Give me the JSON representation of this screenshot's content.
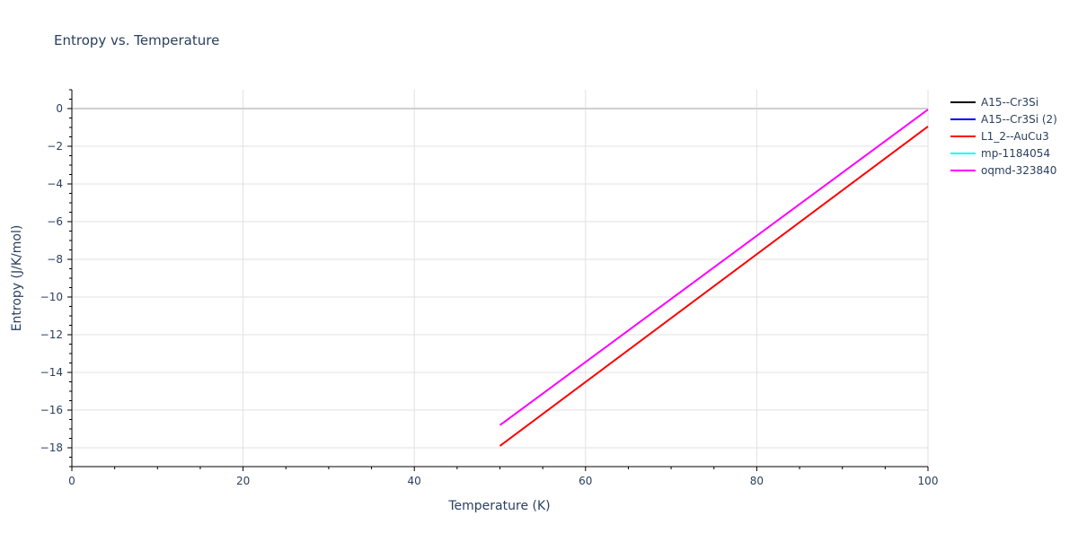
{
  "chart_data": {
    "type": "line",
    "title": "Entropy vs. Temperature",
    "xlabel": "Temperature (K)",
    "ylabel": "Entropy (J/K/mol)",
    "xlim": [
      0,
      100
    ],
    "ylim": [
      -19,
      1
    ],
    "x_ticks": [
      0,
      20,
      40,
      60,
      80,
      100
    ],
    "y_ticks": [
      0,
      -2,
      -4,
      -6,
      -8,
      -10,
      -12,
      -14,
      -16,
      -18
    ],
    "grid": true,
    "legend_position": "right",
    "series": [
      {
        "name": "A15--Cr3Si",
        "color": "#000000",
        "x": [],
        "y": []
      },
      {
        "name": "A15--Cr3Si (2)",
        "color": "#0000ff",
        "x": [],
        "y": []
      },
      {
        "name": "L1_2--AuCu3",
        "color": "#ff0000",
        "x": [
          50,
          100
        ],
        "y": [
          -17.9,
          -0.95
        ]
      },
      {
        "name": "mp-1184054",
        "color": "#00ffff",
        "x": [],
        "y": []
      },
      {
        "name": "oqmd-323840",
        "color": "#ff00ff",
        "x": [
          50,
          100
        ],
        "y": [
          -16.8,
          -0.05
        ]
      }
    ]
  }
}
